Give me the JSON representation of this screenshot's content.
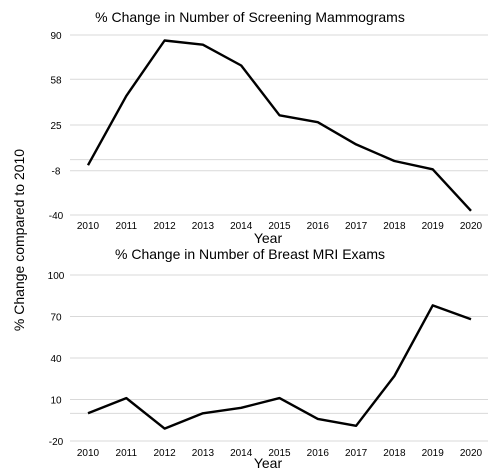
{
  "ylabel_shared": "% Change compared to 2010",
  "chart_data": [
    {
      "type": "line",
      "title": "% Change in Number of Screening Mammograms",
      "xlabel": "Year",
      "ylabel": "% Change compared to 2010",
      "categories": [
        "2010",
        "2011",
        "2012",
        "2013",
        "2014",
        "2015",
        "2016",
        "2017",
        "2018",
        "2019",
        "2020"
      ],
      "series": [
        {
          "values": [
            -4,
            46,
            86,
            83,
            68,
            32,
            27,
            11,
            -1,
            -7,
            -37
          ]
        }
      ],
      "yticks": [
        90,
        58,
        25,
        -8,
        -40
      ],
      "ytick_labels": [
        "90",
        "58",
        "25",
        "-8",
        "-40"
      ],
      "ylim": [
        -40,
        90
      ],
      "grid": true
    },
    {
      "type": "line",
      "title": "% Change in Number of Breast MRI Exams",
      "xlabel": "Year",
      "ylabel": "% Change compared to 2010",
      "categories": [
        "2010",
        "2011",
        "2012",
        "2013",
        "2014",
        "2015",
        "2016",
        "2017",
        "2018",
        "2019",
        "2020"
      ],
      "series": [
        {
          "values": [
            0,
            11,
            -11,
            0,
            4,
            11,
            -4,
            -9,
            27,
            78,
            68
          ]
        }
      ],
      "yticks": [
        100,
        70,
        40,
        10,
        -20
      ],
      "ytick_labels": [
        "100",
        "70",
        "40",
        "10",
        "-20"
      ],
      "ylim": [
        -20,
        100
      ],
      "grid": true
    }
  ]
}
